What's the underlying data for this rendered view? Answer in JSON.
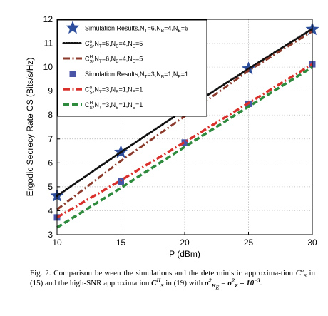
{
  "chart_data": {
    "type": "line",
    "xlabel": "P (dBm)",
    "ylabel": "Ergodic Secrecy Rate CS (Bits/s/Hz)",
    "xlim": [
      10,
      30
    ],
    "ylim": [
      3,
      12
    ],
    "xticks": [
      10,
      15,
      20,
      25,
      30
    ],
    "yticks": [
      3,
      4,
      5,
      6,
      7,
      8,
      9,
      10,
      11,
      12
    ],
    "grid": true,
    "legend_position": "top-left",
    "series": [
      {
        "name": "Simulation Results,N_T=6,N_B=4,N_E=5",
        "legend": {
          "main": "Simulation Results,N",
          "parts": [
            [
              "T",
              "=6,N"
            ],
            [
              "B",
              "=4,N"
            ],
            [
              "E",
              "=5"
            ]
          ]
        },
        "style": "marker",
        "marker": "star",
        "color": "#2d4e9c",
        "x": [
          10,
          15,
          20,
          25,
          30
        ],
        "y": [
          4.62,
          6.45,
          8.22,
          9.93,
          11.58
        ]
      },
      {
        "name": "C_S^o,N_T=6,N_B=4,N_E=5",
        "legend": {
          "main": "C",
          "sup": "o",
          "sub": "S",
          "rest": ",N",
          "parts": [
            [
              "T",
              "=6,N"
            ],
            [
              "B",
              "=4,N"
            ],
            [
              "E",
              "=5"
            ]
          ]
        },
        "style": "dotted",
        "color": "#111111",
        "x": [
          10,
          15,
          20,
          25,
          30
        ],
        "y": [
          4.62,
          6.45,
          8.22,
          9.93,
          11.6
        ]
      },
      {
        "name": "C_S^H,N_T=6,N_B=4,N_E=5",
        "legend": {
          "main": "C",
          "sup": "H",
          "sub": "S",
          "rest": ",N",
          "parts": [
            [
              "T",
              "=6,N"
            ],
            [
              "B",
              "=4,N"
            ],
            [
              "E",
              "=5"
            ]
          ]
        },
        "style": "dashdot",
        "color": "#8b3a2c",
        "x": [
          10,
          15,
          20,
          25,
          30
        ],
        "y": [
          4.05,
          6.08,
          7.95,
          9.85,
          11.5
        ]
      },
      {
        "name": "Simulation Results,N_T=3,N_B=1,N_E=1",
        "legend": {
          "main": "Simulation Results,N",
          "parts": [
            [
              "T",
              "=3,N"
            ],
            [
              "B",
              "=1,N"
            ],
            [
              "E",
              "=1"
            ]
          ]
        },
        "style": "marker",
        "marker": "square",
        "color": "#4a55a8",
        "x": [
          10,
          15,
          20,
          25,
          30
        ],
        "y": [
          3.72,
          5.22,
          6.85,
          8.47,
          10.12
        ]
      },
      {
        "name": "C_S^o,N_T=3,N_B=1,N_E=1",
        "legend": {
          "main": "C",
          "sup": "o",
          "sub": "S",
          "rest": ",N",
          "parts": [
            [
              "T",
              "=3,N"
            ],
            [
              "B",
              "=1,N"
            ],
            [
              "E",
              "=1"
            ]
          ]
        },
        "style": "dashdot-thick",
        "color": "#d9302c",
        "x": [
          10,
          15,
          20,
          25,
          30
        ],
        "y": [
          3.72,
          5.27,
          6.87,
          8.5,
          10.12
        ]
      },
      {
        "name": "C_S^H,N_T=3,N_B=1,N_E=1",
        "legend": {
          "main": "C",
          "sup": "H",
          "sub": "S",
          "rest": ",N",
          "parts": [
            [
              "T",
              "=3,N"
            ],
            [
              "B",
              "=1,N"
            ],
            [
              "E",
              "=1"
            ]
          ]
        },
        "style": "dashed-thick",
        "color": "#2e8b3e",
        "x": [
          10,
          15,
          20,
          25,
          30
        ],
        "y": [
          3.3,
          4.95,
          6.67,
          8.35,
          10.0
        ]
      }
    ]
  },
  "caption": {
    "fig_label": "Fig. 2.",
    "t1": "Comparison between the simulations and the deterministic approxima-tion",
    "t2": "in (15) and the high-SNR approximation",
    "t3": "in (19) with",
    "t4": "="
  }
}
